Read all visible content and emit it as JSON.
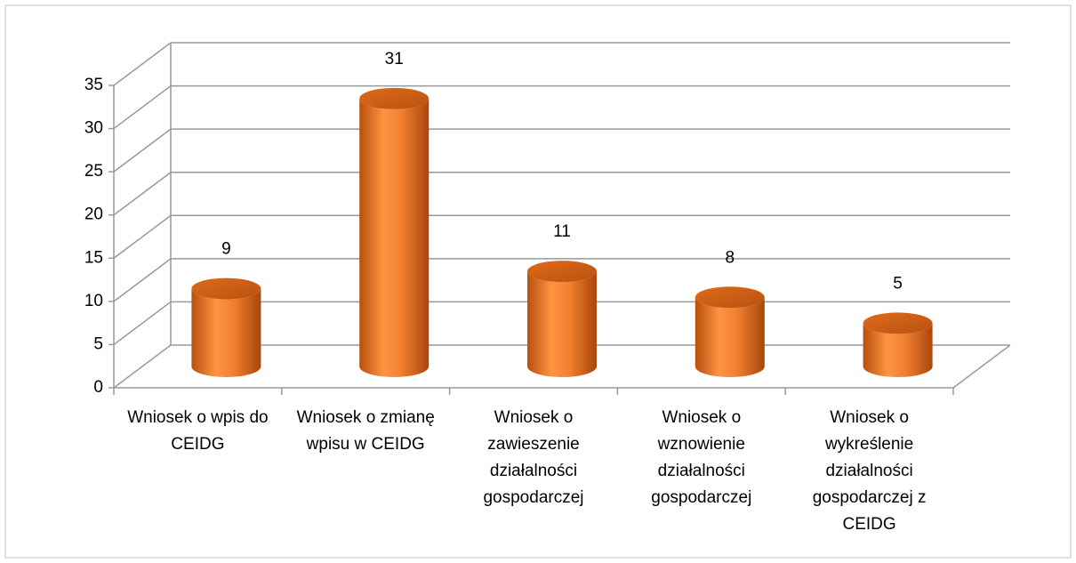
{
  "chart_data": {
    "type": "bar3d",
    "categories": [
      "Wniosek o wpis do CEIDG",
      "Wniosek o zmianę wpisu w CEIDG",
      "Wniosek o zawieszenie działalności gospodarczej",
      "Wniosek o wznowienie działalności gospodarczej",
      "Wniosek o wykreślenie działalności gospodarczej z CEIDG"
    ],
    "values": [
      9,
      31,
      11,
      8,
      5
    ],
    "color": "#f07a26",
    "ylim": [
      0,
      35
    ],
    "yticks": [
      0,
      5,
      10,
      15,
      20,
      25,
      30,
      35
    ],
    "grid": true
  }
}
